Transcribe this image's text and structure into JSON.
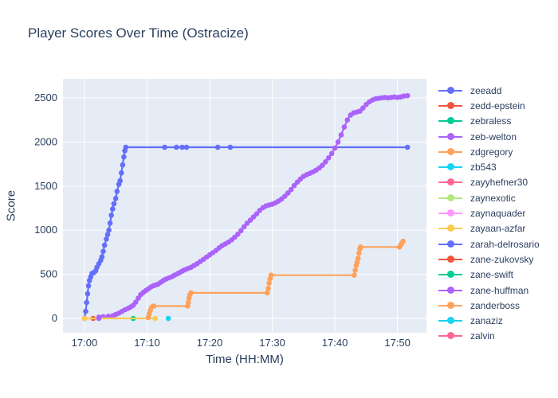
{
  "title": "Player Scores Over Time (Ostracize)",
  "axes": {
    "x": {
      "title": "Time (HH:MM)",
      "ticks": [
        {
          "m": 0,
          "label": "17:00"
        },
        {
          "m": 10,
          "label": "17:10"
        },
        {
          "m": 20,
          "label": "17:20"
        },
        {
          "m": 30,
          "label": "17:30"
        },
        {
          "m": 40,
          "label": "17:40"
        },
        {
          "m": 50,
          "label": "17:50"
        }
      ],
      "range_minutes": [
        -3.43,
        54.63
      ]
    },
    "y": {
      "title": "Score",
      "ticks": [
        0,
        500,
        1000,
        1500,
        2000,
        2500
      ],
      "range": [
        -162,
        2716
      ]
    }
  },
  "colors": {
    "plot_bg": "#e5ecf6",
    "grid": "#ffffff",
    "text": "#2a3f5f"
  },
  "chart_data": {
    "type": "line",
    "mode": "lines+markers",
    "title": "Player Scores Over Time (Ostracize)",
    "xlabel": "Time (HH:MM)",
    "ylabel": "Score",
    "x_unit": "minutes after 17:00",
    "legend_position": "right",
    "grid": true,
    "series": [
      {
        "name": "zeeadd",
        "color": "#636efa",
        "points": [
          [
            0,
            0
          ],
          [
            0.2,
            80
          ],
          [
            0.35,
            180
          ],
          [
            0.5,
            280
          ],
          [
            0.65,
            370
          ],
          [
            0.8,
            430
          ],
          [
            1.0,
            470
          ],
          [
            1.2,
            510
          ],
          [
            1.5,
            520
          ],
          [
            1.8,
            540
          ],
          [
            2.0,
            580
          ],
          [
            2.3,
            620
          ],
          [
            2.6,
            660
          ],
          [
            2.8,
            700
          ],
          [
            3.0,
            760
          ],
          [
            3.2,
            830
          ],
          [
            3.5,
            900
          ],
          [
            3.7,
            950
          ],
          [
            3.9,
            1000
          ],
          [
            4.1,
            1080
          ],
          [
            4.3,
            1170
          ],
          [
            4.5,
            1240
          ],
          [
            4.7,
            1300
          ],
          [
            5.0,
            1360
          ],
          [
            5.2,
            1440
          ],
          [
            5.5,
            1520
          ],
          [
            5.7,
            1560
          ],
          [
            5.9,
            1650
          ],
          [
            6.1,
            1740
          ],
          [
            6.3,
            1830
          ],
          [
            6.45,
            1900
          ],
          [
            6.6,
            1940
          ],
          [
            12.8,
            1940
          ],
          [
            14.7,
            1940
          ],
          [
            15.6,
            1940
          ],
          [
            16.3,
            1940
          ],
          [
            21.3,
            1940
          ],
          [
            23.3,
            1940
          ],
          [
            51.6,
            1940
          ]
        ]
      },
      {
        "name": "zedd-epstein",
        "color": "#ef553b",
        "points": [
          [
            1.4,
            0
          ]
        ]
      },
      {
        "name": "zebraless",
        "color": "#00cc96",
        "points": [
          [
            7.8,
            0
          ]
        ]
      },
      {
        "name": "zeb-welton",
        "color": "#ab63fa",
        "points": [
          [
            2.3,
            15
          ],
          [
            3.0,
            20
          ],
          [
            3.8,
            25
          ],
          [
            4.5,
            30
          ],
          [
            5.0,
            45
          ],
          [
            5.5,
            60
          ],
          [
            6.0,
            80
          ],
          [
            6.5,
            100
          ],
          [
            7.0,
            115
          ],
          [
            7.4,
            130
          ],
          [
            7.8,
            150
          ],
          [
            8.2,
            185
          ],
          [
            8.6,
            230
          ],
          [
            9.0,
            270
          ],
          [
            9.4,
            295
          ],
          [
            9.8,
            315
          ],
          [
            10.2,
            335
          ],
          [
            10.6,
            355
          ],
          [
            11.0,
            370
          ],
          [
            11.4,
            380
          ],
          [
            11.8,
            390
          ],
          [
            12.2,
            410
          ],
          [
            12.6,
            430
          ],
          [
            13.0,
            445
          ],
          [
            13.5,
            460
          ],
          [
            14.0,
            475
          ],
          [
            14.4,
            490
          ],
          [
            14.8,
            505
          ],
          [
            15.2,
            520
          ],
          [
            15.6,
            535
          ],
          [
            16.0,
            550
          ],
          [
            16.5,
            565
          ],
          [
            17.0,
            580
          ],
          [
            17.5,
            600
          ],
          [
            18.0,
            620
          ],
          [
            18.5,
            645
          ],
          [
            19.0,
            670
          ],
          [
            19.5,
            695
          ],
          [
            20.0,
            720
          ],
          [
            20.5,
            745
          ],
          [
            21.0,
            770
          ],
          [
            21.5,
            800
          ],
          [
            22.0,
            825
          ],
          [
            22.5,
            845
          ],
          [
            23.0,
            865
          ],
          [
            23.5,
            890
          ],
          [
            24.0,
            920
          ],
          [
            24.5,
            955
          ],
          [
            25.0,
            995
          ],
          [
            25.5,
            1040
          ],
          [
            26.0,
            1080
          ],
          [
            26.5,
            1115
          ],
          [
            27.0,
            1150
          ],
          [
            27.5,
            1185
          ],
          [
            28.0,
            1225
          ],
          [
            28.5,
            1255
          ],
          [
            29.0,
            1275
          ],
          [
            29.5,
            1285
          ],
          [
            30.0,
            1295
          ],
          [
            30.5,
            1310
          ],
          [
            31.0,
            1330
          ],
          [
            31.5,
            1355
          ],
          [
            32.0,
            1385
          ],
          [
            32.5,
            1420
          ],
          [
            33.0,
            1460
          ],
          [
            33.5,
            1505
          ],
          [
            34.0,
            1545
          ],
          [
            34.5,
            1580
          ],
          [
            35.0,
            1610
          ],
          [
            35.5,
            1630
          ],
          [
            36.0,
            1645
          ],
          [
            36.5,
            1660
          ],
          [
            37.0,
            1680
          ],
          [
            37.5,
            1705
          ],
          [
            38.0,
            1735
          ],
          [
            38.5,
            1775
          ],
          [
            39.0,
            1820
          ],
          [
            39.5,
            1870
          ],
          [
            40.0,
            1930
          ],
          [
            40.5,
            2000
          ],
          [
            41.0,
            2080
          ],
          [
            41.5,
            2170
          ],
          [
            42.0,
            2250
          ],
          [
            42.5,
            2305
          ],
          [
            43.0,
            2330
          ],
          [
            43.5,
            2340
          ],
          [
            44.0,
            2350
          ],
          [
            44.5,
            2385
          ],
          [
            45.0,
            2425
          ],
          [
            45.5,
            2455
          ],
          [
            46.0,
            2475
          ],
          [
            46.5,
            2490
          ],
          [
            47.0,
            2495
          ],
          [
            47.5,
            2500
          ],
          [
            48.0,
            2505
          ],
          [
            48.5,
            2500
          ],
          [
            49.0,
            2505
          ],
          [
            49.5,
            2510
          ],
          [
            50.0,
            2505
          ],
          [
            50.5,
            2510
          ],
          [
            51.0,
            2520
          ],
          [
            51.6,
            2525
          ]
        ]
      },
      {
        "name": "zdgregory",
        "color": "#ffa15a",
        "points": []
      },
      {
        "name": "zb543",
        "color": "#19d3f3",
        "points": [
          [
            13.4,
            0
          ]
        ]
      },
      {
        "name": "zayyhefner30",
        "color": "#ff6692",
        "points": []
      },
      {
        "name": "zaynexotic",
        "color": "#b6e880",
        "points": []
      },
      {
        "name": "zaynaquader",
        "color": "#ff97ff",
        "points": []
      },
      {
        "name": "zayaan-azfar",
        "color": "#fecb52",
        "points": [
          [
            0,
            0
          ],
          [
            11.3,
            0
          ]
        ]
      },
      {
        "name": "zarah-delrosario",
        "color": "#636efa",
        "points": []
      },
      {
        "name": "zane-zukovsky",
        "color": "#ef553b",
        "points": []
      },
      {
        "name": "zane-swift",
        "color": "#00cc96",
        "points": []
      },
      {
        "name": "zane-huffman",
        "color": "#ab63fa",
        "points": [
          [
            2.3,
            0
          ]
        ]
      },
      {
        "name": "zanderboss",
        "color": "#ffa15a",
        "points": [
          [
            10.2,
            10
          ],
          [
            10.35,
            50
          ],
          [
            10.5,
            90
          ],
          [
            10.7,
            120
          ],
          [
            10.9,
            135
          ],
          [
            11.1,
            140
          ],
          [
            16.5,
            140
          ],
          [
            16.6,
            180
          ],
          [
            16.7,
            230
          ],
          [
            16.85,
            270
          ],
          [
            17.0,
            290
          ],
          [
            29.2,
            290
          ],
          [
            29.35,
            340
          ],
          [
            29.5,
            400
          ],
          [
            29.65,
            450
          ],
          [
            29.8,
            490
          ],
          [
            43.1,
            490
          ],
          [
            43.25,
            545
          ],
          [
            43.4,
            600
          ],
          [
            43.55,
            635
          ],
          [
            43.7,
            680
          ],
          [
            43.85,
            740
          ],
          [
            44.0,
            790
          ],
          [
            44.1,
            810
          ],
          [
            50.3,
            810
          ],
          [
            50.5,
            830
          ],
          [
            50.7,
            855
          ],
          [
            50.9,
            875
          ]
        ]
      },
      {
        "name": "zanaziz",
        "color": "#19d3f3",
        "points": []
      },
      {
        "name": "zalvin",
        "color": "#ff6692",
        "points": []
      }
    ]
  }
}
